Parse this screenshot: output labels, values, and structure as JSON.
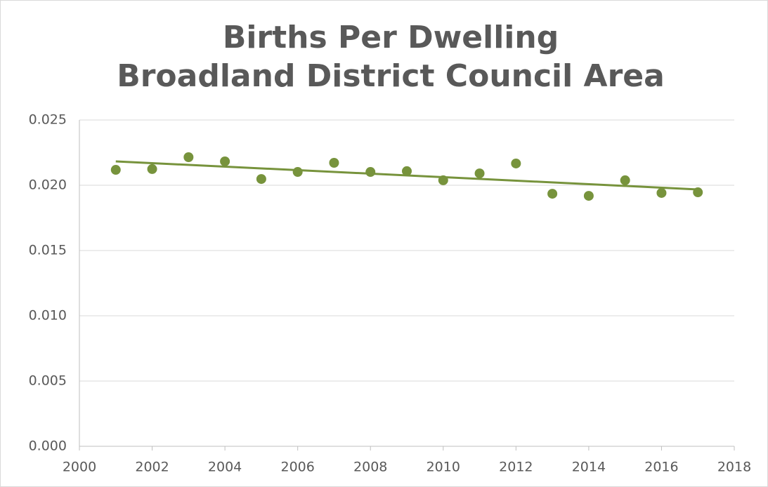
{
  "chart_data": {
    "type": "scatter",
    "title": [
      "Births Per Dwelling",
      "Broadland District Council Area"
    ],
    "x": [
      2001,
      2002,
      2003,
      2004,
      2005,
      2006,
      2007,
      2008,
      2009,
      2010,
      2011,
      2012,
      2013,
      2014,
      2015,
      2016,
      2017
    ],
    "values": [
      0.02118,
      0.02124,
      0.02215,
      0.02183,
      0.02048,
      0.02102,
      0.02172,
      0.02102,
      0.02108,
      0.02038,
      0.02091,
      0.02167,
      0.01935,
      0.01919,
      0.02038,
      0.01941,
      0.01946
    ],
    "color": "#77933c",
    "trendline": {
      "x": [
        2001,
        2017
      ],
      "values": [
        0.02183,
        0.01968
      ]
    },
    "xlim": [
      2000,
      2018
    ],
    "xticks": [
      2000,
      2002,
      2004,
      2006,
      2008,
      2010,
      2012,
      2014,
      2016,
      2018
    ],
    "ylim": [
      0,
      0.025
    ],
    "yticks": [
      {
        "value": 0,
        "label": "0.000"
      },
      0.005,
      {
        "value": 0.01,
        "label": "0.010"
      },
      0.015,
      {
        "value": 0.02,
        "label": "0.020"
      },
      0.025
    ],
    "grid": true
  }
}
